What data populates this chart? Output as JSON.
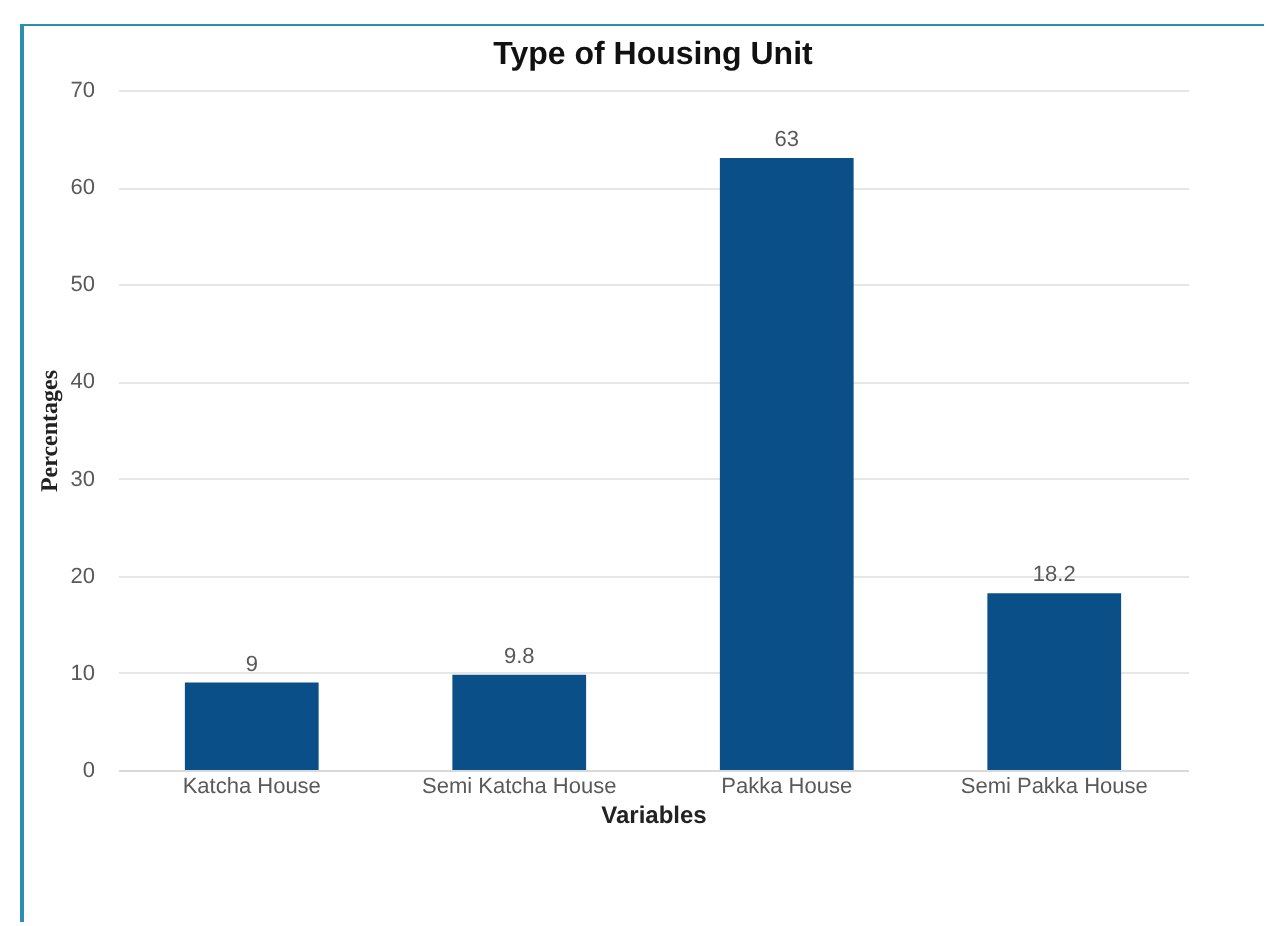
{
  "chart_data": {
    "type": "bar",
    "title": "Type of Housing Unit",
    "xlabel": "Variables",
    "ylabel": "Percentages",
    "categories": [
      "Katcha House",
      "Semi Katcha House",
      "Pakka House",
      "Semi Pakka House"
    ],
    "values": [
      9,
      9.8,
      63,
      18.2
    ],
    "color": "#0b4f88",
    "ylim": [
      0,
      70
    ],
    "yticks": [
      0,
      10,
      20,
      30,
      40,
      50,
      60,
      70
    ],
    "grid": "y",
    "data_labels": true
  }
}
